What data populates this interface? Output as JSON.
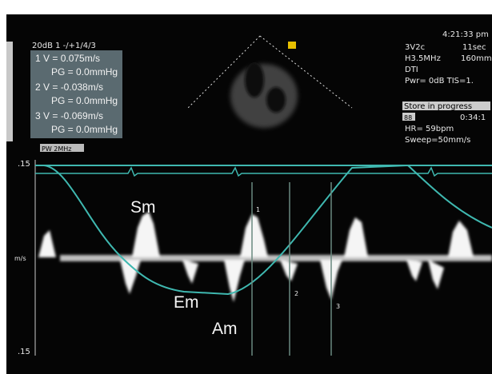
{
  "header": {
    "settings": "20dB 1 -/+1/4/3",
    "mode_tag": "PW 2MHz"
  },
  "measurements": [
    {
      "velocity": "1   V = 0.075m/s",
      "gradient": "PG = 0.0mmHg"
    },
    {
      "velocity": "2   V = -0.038m/s",
      "gradient": "PG = 0.0mmHg"
    },
    {
      "velocity": "3   V = -0.069m/s",
      "gradient": "PG = 0.0mmHg"
    }
  ],
  "info": {
    "time": "4:21:33 pm",
    "probe": "3V2c",
    "duration": "11sec",
    "frequency": "H3.5MHz",
    "depth": "160mm",
    "mode": "DTI",
    "power": "Pwr=   0dB  TIS=1.",
    "status": "Store in progress",
    "counter_icon": "88",
    "counter": "0:34:1",
    "heart_rate": "HR= 59bpm",
    "sweep": "Sweep=50mm/s"
  },
  "axis": {
    "top": ".15",
    "unit": "m/s",
    "bottom": ".15"
  },
  "wave_labels": {
    "sm": "Sm",
    "em": "Em",
    "am": "Am"
  },
  "cursor_labels": [
    "1",
    "2",
    "3"
  ]
}
